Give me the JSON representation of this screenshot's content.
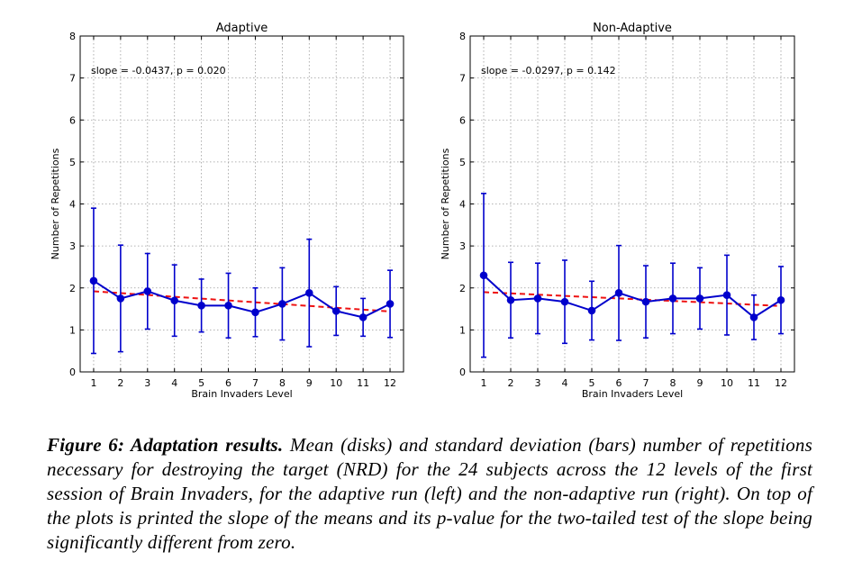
{
  "chart_data": [
    {
      "type": "line",
      "title": "Adaptive",
      "xlabel": "Brain Invaders Level",
      "ylabel": "Number of Repetitions",
      "x": [
        1,
        2,
        3,
        4,
        5,
        6,
        7,
        8,
        9,
        10,
        11,
        12
      ],
      "xticks": [
        "1",
        "2",
        "3",
        "4",
        "5",
        "6",
        "7",
        "8",
        "9",
        "10",
        "11",
        "12"
      ],
      "yticks": [
        "0",
        "1",
        "2",
        "3",
        "4",
        "5",
        "6",
        "7",
        "8"
      ],
      "xlim": [
        0.5,
        12.5
      ],
      "ylim": [
        0,
        8
      ],
      "grid": true,
      "annotation": "slope = -0.0437, p = 0.020",
      "series": [
        {
          "values": [
            2.17,
            1.75,
            1.92,
            1.7,
            1.58,
            1.58,
            1.42,
            1.62,
            1.88,
            1.45,
            1.3,
            1.62
          ],
          "std": [
            1.73,
            1.27,
            0.9,
            0.85,
            0.63,
            0.77,
            0.58,
            0.86,
            1.28,
            0.58,
            0.45,
            0.8
          ],
          "color": "#0000cc"
        }
      ],
      "fit": {
        "x": [
          1,
          12
        ],
        "y": [
          1.92,
          1.44
        ],
        "color": "#ee1111"
      }
    },
    {
      "type": "line",
      "title": "Non-Adaptive",
      "xlabel": "Brain Invaders Level",
      "ylabel": "Number of Repetitions",
      "x": [
        1,
        2,
        3,
        4,
        5,
        6,
        7,
        8,
        9,
        10,
        11,
        12
      ],
      "xticks": [
        "1",
        "2",
        "3",
        "4",
        "5",
        "6",
        "7",
        "8",
        "9",
        "10",
        "11",
        "12"
      ],
      "yticks": [
        "0",
        "1",
        "2",
        "3",
        "4",
        "5",
        "6",
        "7",
        "8"
      ],
      "xlim": [
        0.5,
        12.5
      ],
      "ylim": [
        0,
        8
      ],
      "grid": true,
      "annotation": "slope = -0.0297, p = 0.142",
      "series": [
        {
          "values": [
            2.3,
            1.71,
            1.75,
            1.67,
            1.46,
            1.88,
            1.67,
            1.75,
            1.75,
            1.83,
            1.3,
            1.71
          ],
          "std": [
            1.95,
            0.9,
            0.84,
            0.99,
            0.7,
            1.13,
            0.86,
            0.84,
            0.73,
            0.95,
            0.53,
            0.8
          ],
          "color": "#0000cc"
        }
      ],
      "fit": {
        "x": [
          1,
          12
        ],
        "y": [
          1.9,
          1.57
        ],
        "color": "#ee1111"
      }
    }
  ],
  "caption": {
    "lead": "Figure 6: Adaptation results.",
    "text": " Mean (disks) and standard deviation (bars) number of repetitions necessary for destroying the target (NRD) for the 24 subjects across the 12 levels of the first session of Brain Invaders, for the adaptive run (left) and the non-adaptive run (right). On top of the plots is printed the slope of the means and its p-value for the two-tailed test of the slope being significantly different from zero."
  }
}
